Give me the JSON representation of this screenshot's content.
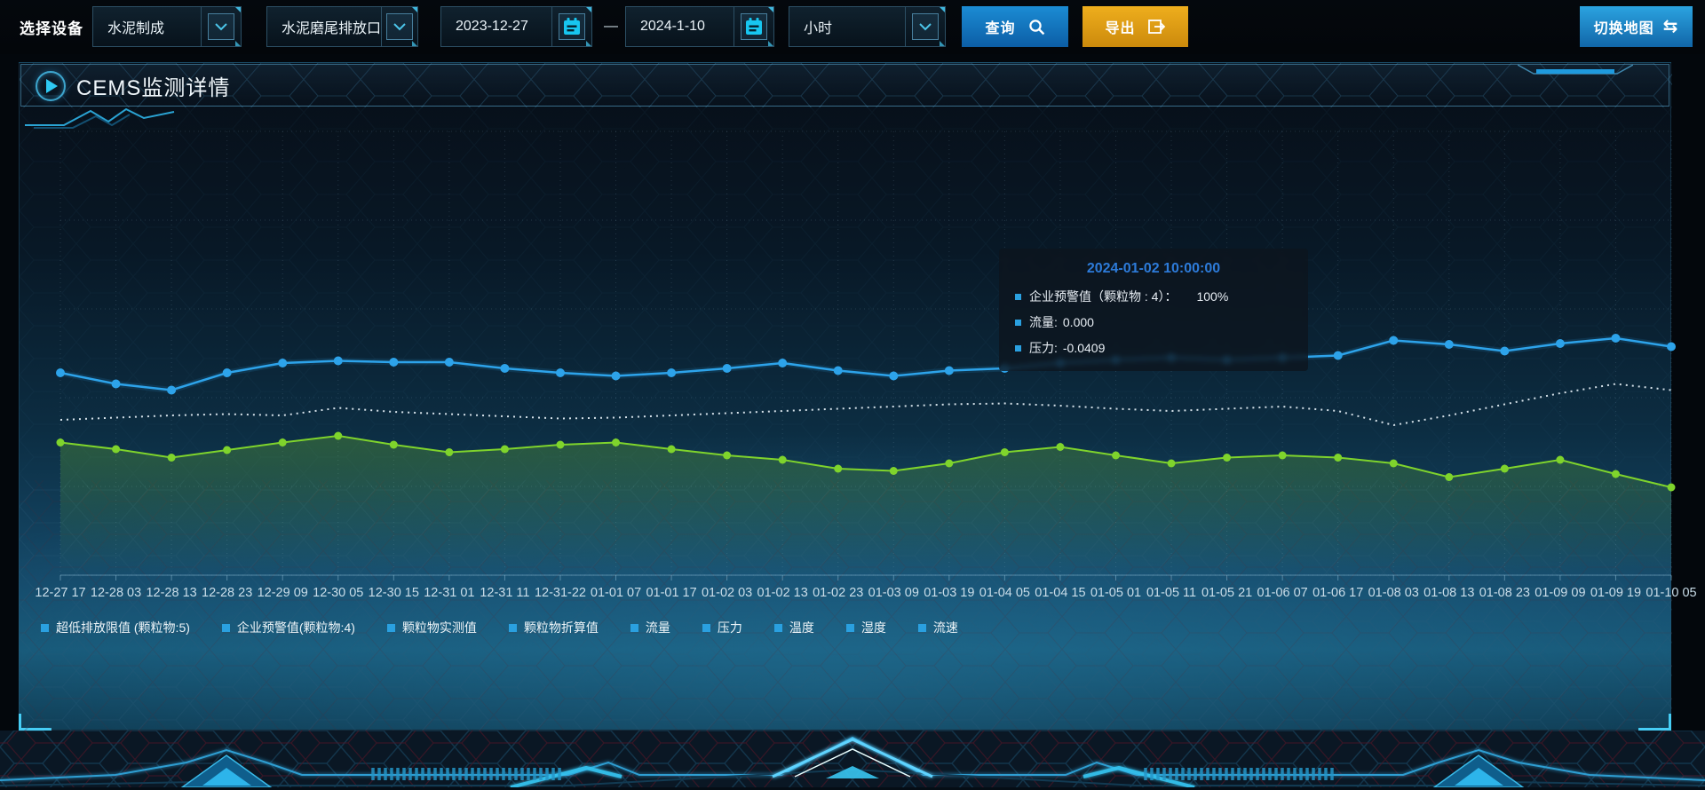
{
  "toolbar": {
    "device_label": "选择设备",
    "device_select": {
      "value": "水泥制成"
    },
    "outlet_select": {
      "value": "水泥磨尾排放口"
    },
    "date_start": {
      "value": "2023-12-27"
    },
    "range_separator": "—",
    "date_end": {
      "value": "2024-1-10"
    },
    "interval_select": {
      "value": "小时"
    },
    "query_button": "查询",
    "export_button": "导出",
    "switch_map_button": "切换地图",
    "icons": {
      "swap": "⇆",
      "search": "search-icon",
      "calendar": "calendar-icon",
      "chevron": "chevron-down-icon",
      "export": "export-arrow-icon"
    }
  },
  "panel": {
    "title": "CEMS监测详情"
  },
  "tooltip": {
    "title": "2024-01-02 10:00:00",
    "rows": [
      {
        "label": "企业预警值（颗粒物 : 4）：",
        "value": "100%"
      },
      {
        "label": "流量:",
        "value": "0.000"
      },
      {
        "label": "压力:",
        "value": "-0.0409"
      }
    ]
  },
  "colors": {
    "accent_blue": "#2da3ea",
    "series_green": "#7fd42c",
    "dotted_white": "#e8f2f8",
    "legend_marker": "#2aa0e0",
    "tooltip_title": "#2d7bd9",
    "export_orange": "#dd9a12",
    "button_blue": "#1173bd"
  },
  "chart_data": {
    "type": "line",
    "title": "",
    "xlabel": "",
    "ylabel": "",
    "ylim": [
      0,
      100
    ],
    "y_axis_labels_visible": false,
    "grid": "dotted",
    "legend_position": "bottom-left",
    "legend": [
      "超低排放限值 (颗粒物:5)",
      "企业预警值(颗粒物:4)",
      "颗粒物实测值",
      "颗粒物折算值",
      "流量",
      "压力",
      "温度",
      "湿度",
      "流速"
    ],
    "x": [
      "12-27 17",
      "12-28 03",
      "12-28 13",
      "12-28 23",
      "12-29 09",
      "12-30 05",
      "12-30 15",
      "12-31 01",
      "12-31 11",
      "12-31-22",
      "01-01 07",
      "01-01 17",
      "01-02 03",
      "01-02 13",
      "01-02 23",
      "01-03 09",
      "01-03 19",
      "01-04 05",
      "01-04 15",
      "01-05 01",
      "01-05 11",
      "01-05 21",
      "01-06 07",
      "01-06 17",
      "01-08 03",
      "01-08 13",
      "01-08 23",
      "01-09 09",
      "01-09 19",
      "01-10 05"
    ],
    "series": [
      {
        "name": "blue-marked-line",
        "color": "#2da3ea",
        "style": "solid",
        "markers": true,
        "values": [
          45.6,
          43.1,
          41.7,
          45.6,
          47.8,
          48.3,
          48.0,
          48.0,
          46.6,
          45.6,
          44.9,
          45.6,
          46.6,
          47.8,
          46.1,
          44.9,
          46.1,
          46.6,
          47.8,
          48.5,
          49.0,
          48.5,
          49.0,
          49.5,
          52.9,
          52.0,
          50.5,
          52.2,
          53.4,
          51.5
        ]
      },
      {
        "name": "white-dotted-line",
        "color": "#e8f2f8",
        "style": "dotted",
        "markers": false,
        "values": [
          35.0,
          35.5,
          36.0,
          36.3,
          36.0,
          37.7,
          36.8,
          36.3,
          35.8,
          35.3,
          35.5,
          36.0,
          36.5,
          37.0,
          37.5,
          38.0,
          38.5,
          38.7,
          38.2,
          37.5,
          37.0,
          37.5,
          38.0,
          37.0,
          33.8,
          36.0,
          38.5,
          41.0,
          43.1,
          41.7
        ]
      },
      {
        "name": "green-marked-line",
        "color": "#7fd42c",
        "style": "solid",
        "markers": true,
        "area_fill": true,
        "values": [
          29.9,
          28.4,
          26.5,
          28.2,
          29.9,
          31.4,
          29.4,
          27.7,
          28.4,
          29.4,
          29.9,
          28.4,
          27.0,
          26.0,
          24.0,
          23.5,
          25.2,
          27.7,
          28.9,
          27.0,
          25.2,
          26.5,
          27.0,
          26.5,
          25.2,
          22.1,
          24.0,
          26.0,
          22.8,
          19.8
        ]
      }
    ]
  }
}
